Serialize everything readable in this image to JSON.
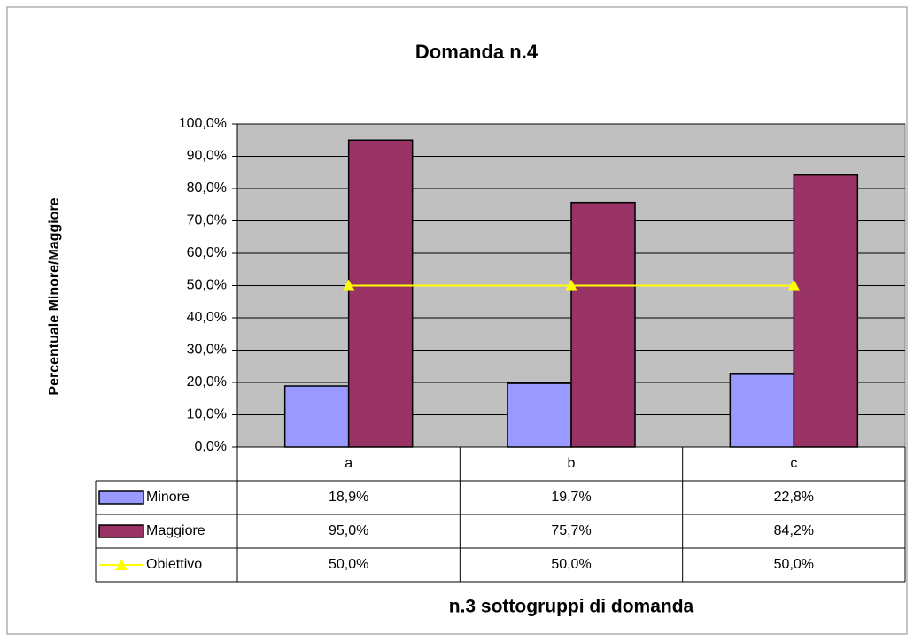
{
  "chart_data": {
    "type": "bar",
    "title": "Domanda n.4",
    "y_label": "Percentuale Minore/Maggiore",
    "x_label": "n.3 sottogruppi di domanda",
    "categories": [
      "a",
      "b",
      "c"
    ],
    "series": [
      {
        "name": "Minore",
        "type": "bar",
        "color": "#9999ff",
        "values": [
          18.9,
          19.7,
          22.8
        ],
        "value_labels": [
          "18,9%",
          "19,7%",
          "22,8%"
        ]
      },
      {
        "name": "Maggiore",
        "type": "bar",
        "color": "#993366",
        "values": [
          95.0,
          75.7,
          84.2
        ],
        "value_labels": [
          "95,0%",
          "75,7%",
          "84,2%"
        ]
      },
      {
        "name": "Obiettivo",
        "type": "line",
        "color": "#ffff00",
        "values": [
          50.0,
          50.0,
          50.0
        ],
        "value_labels": [
          "50,0%",
          "50,0%",
          "50,0%"
        ]
      }
    ],
    "ylim": [
      0,
      100
    ],
    "yticks": [
      {
        "value": 0,
        "label": "0,0%"
      },
      {
        "value": 10,
        "label": "10,0%"
      },
      {
        "value": 20,
        "label": "20,0%"
      },
      {
        "value": 30,
        "label": "30,0%"
      },
      {
        "value": 40,
        "label": "40,0%"
      },
      {
        "value": 50,
        "label": "50,0%"
      },
      {
        "value": 60,
        "label": "60,0%"
      },
      {
        "value": 70,
        "label": "70,0%"
      },
      {
        "value": 80,
        "label": "80,0%"
      },
      {
        "value": 90,
        "label": "90,0%"
      },
      {
        "value": 100,
        "label": "100,0%"
      }
    ],
    "grid": true
  }
}
